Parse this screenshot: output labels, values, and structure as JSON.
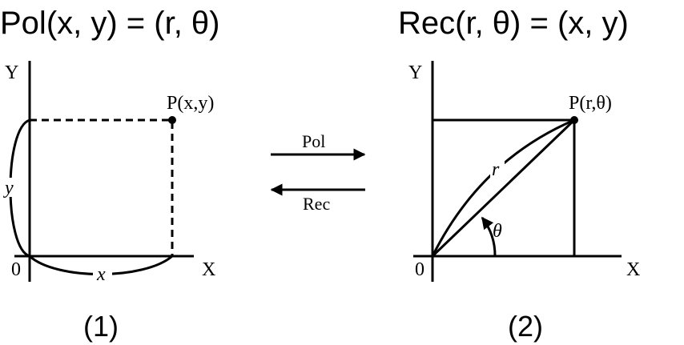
{
  "titles": [
    "Pol(x, y) = (r, θ)",
    "Rec(r, θ) = (x, y)"
  ],
  "left": {
    "y_axis": "Y",
    "x_axis": "X",
    "origin": "0",
    "point": "P(x,y)",
    "y_label": "y",
    "x_label": "x",
    "caption": "(1)"
  },
  "middle": {
    "forward": "Pol",
    "backward": "Rec"
  },
  "right": {
    "y_axis": "Y",
    "x_axis": "X",
    "origin": "0",
    "point": "P(r,θ)",
    "r_label": "r",
    "angle_label": "θ",
    "caption": "(2)"
  }
}
